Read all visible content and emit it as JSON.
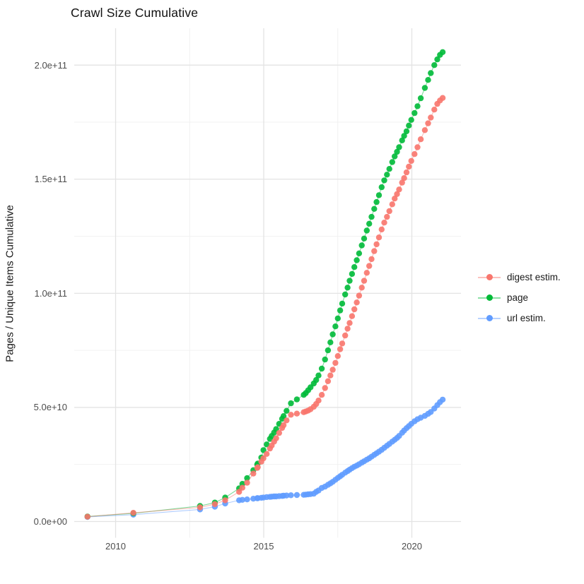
{
  "figure": {
    "title": "Crawl Size Cumulative",
    "y_axis_title": "Pages / Unique Items Cumulative"
  },
  "legend": {
    "position": "right",
    "items": [
      {
        "label": "digest estim.",
        "color": "#F8766D"
      },
      {
        "label": "page",
        "color": "#00BA38"
      },
      {
        "label": "url estim.",
        "color": "#619CFF"
      }
    ]
  },
  "axes": {
    "y_ticks": [
      {
        "value_e9": 0,
        "label": "0.0e+00"
      },
      {
        "value_e9": 50,
        "label": "5.0e+10"
      },
      {
        "value_e9": 100,
        "label": "1.0e+11"
      },
      {
        "value_e9": 150,
        "label": "1.5e+11"
      },
      {
        "value_e9": 200,
        "label": "2.0e+11"
      }
    ],
    "y_minor_e9": [
      25,
      75,
      125,
      175
    ],
    "x_ticks": [
      {
        "value": 2010,
        "label": "2010"
      },
      {
        "value": 2015,
        "label": "2015"
      },
      {
        "value": 2020,
        "label": "2020"
      }
    ],
    "x_minor": [
      2012.5,
      2017.5
    ]
  },
  "colors": {
    "background": "#ffffff",
    "grid_major": "#e3e3e3",
    "grid_minor": "#f0f0f0",
    "tick_text": "#4d4d4d",
    "text": "#1a1a1a"
  },
  "chart_data": {
    "type": "scatter",
    "title": "Crawl Size Cumulative",
    "xlabel": "",
    "ylabel": "Pages / Unique Items Cumulative",
    "x_unit": "year (decimal)",
    "value_unit_multiplier": 1000000000,
    "xlim": [
      2008.55,
      2021.65
    ],
    "ylim_e9": [
      -10,
      216
    ],
    "grid": true,
    "legend_position": "right",
    "x": [
      2009.05,
      2010.6,
      2012.85,
      2013.35,
      2013.7,
      2014.17,
      2014.28,
      2014.44,
      2014.65,
      2014.78,
      2014.8,
      2014.92,
      2014.99,
      2015.1,
      2015.21,
      2015.27,
      2015.35,
      2015.42,
      2015.52,
      2015.62,
      2015.67,
      2015.77,
      2015.92,
      2016.12,
      2016.35,
      2016.42,
      2016.5,
      2016.58,
      2016.69,
      2016.77,
      2016.85,
      2016.96,
      2017.07,
      2017.17,
      2017.25,
      2017.33,
      2017.42,
      2017.5,
      2017.58,
      2017.65,
      2017.75,
      2017.83,
      2017.9,
      2017.98,
      2018.06,
      2018.14,
      2018.22,
      2018.31,
      2018.39,
      2018.48,
      2018.56,
      2018.64,
      2018.73,
      2018.81,
      2018.89,
      2018.98,
      2019.07,
      2019.16,
      2019.24,
      2019.34,
      2019.42,
      2019.5,
      2019.57,
      2019.67,
      2019.74,
      2019.82,
      2019.9,
      2019.98,
      2020.09,
      2020.19,
      2020.3,
      2020.44,
      2020.55,
      2020.64,
      2020.76,
      2020.86,
      2020.95,
      2021.04
    ],
    "series": [
      {
        "name": "digest estim.",
        "color": "#F8766D",
        "values_e9": [
          2.1,
          3.8,
          6.2,
          7.6,
          9.3,
          13,
          14.8,
          17,
          21,
          23.5,
          23.8,
          26.2,
          27.7,
          29.6,
          32,
          33.3,
          35,
          36.5,
          38.8,
          41,
          42.2,
          44.3,
          46.8,
          47.3,
          47.9,
          48.2,
          48.6,
          49.2,
          50.3,
          51.5,
          53,
          55.5,
          58.5,
          61.5,
          64,
          66.5,
          69.5,
          72.5,
          75.5,
          78,
          81.5,
          84.5,
          87,
          90,
          93,
          96,
          99,
          102.5,
          105.5,
          109,
          112,
          115,
          118.5,
          121.5,
          124.5,
          128,
          131,
          133.5,
          136,
          139,
          141.5,
          143.5,
          145.5,
          148.5,
          150.5,
          153,
          155.5,
          158,
          161,
          164,
          167.5,
          171.5,
          174.5,
          177,
          180.5,
          183,
          184.5,
          185.6
        ]
      },
      {
        "name": "page",
        "color": "#00BA38",
        "values_e9": [
          2.2,
          3.6,
          6.8,
          8.3,
          10.5,
          14.5,
          16.5,
          19,
          22.5,
          25,
          25.4,
          28,
          31.3,
          33.8,
          36.2,
          37.5,
          39,
          40.5,
          42.8,
          45,
          46.2,
          48.5,
          51.8,
          53.5,
          55.5,
          56.3,
          57.5,
          58.8,
          60.5,
          62,
          64,
          67,
          71,
          75,
          78.5,
          82,
          85.5,
          89,
          92.5,
          95.5,
          99.5,
          102.5,
          105.5,
          108.5,
          111.5,
          114.5,
          117.5,
          121,
          124,
          127.5,
          130.5,
          133.5,
          137,
          140,
          143,
          146.5,
          149.5,
          152,
          154.5,
          157.5,
          160,
          162,
          164,
          167,
          169,
          171,
          173.5,
          176,
          179,
          182,
          185.5,
          190,
          193.5,
          196.5,
          200,
          202.5,
          204.5,
          205.7
        ]
      },
      {
        "name": "url estim.",
        "color": "#619CFF",
        "values_e9": [
          2.0,
          3.0,
          5.3,
          6.5,
          7.9,
          9.3,
          9.5,
          9.7,
          10.0,
          10.2,
          10.2,
          10.4,
          10.5,
          10.7,
          10.8,
          10.9,
          11.0,
          11.0,
          11.1,
          11.2,
          11.3,
          11.4,
          11.5,
          11.6,
          11.7,
          11.8,
          11.9,
          12.0,
          12.2,
          13.0,
          13.6,
          14.7,
          15.3,
          16.1,
          16.7,
          17.4,
          18.3,
          19.1,
          19.8,
          20.5,
          21.4,
          22.1,
          22.7,
          23.4,
          24.0,
          24.5,
          25.1,
          25.8,
          26.4,
          27.1,
          27.7,
          28.4,
          29.2,
          29.9,
          30.6,
          31.4,
          32.3,
          33.2,
          34.0,
          35.0,
          35.8,
          36.6,
          37.5,
          38.9,
          39.9,
          40.9,
          41.8,
          42.8,
          43.9,
          44.8,
          45.5,
          46.3,
          47.2,
          48.0,
          49.5,
          51.0,
          52.3,
          53.4
        ]
      }
    ]
  }
}
